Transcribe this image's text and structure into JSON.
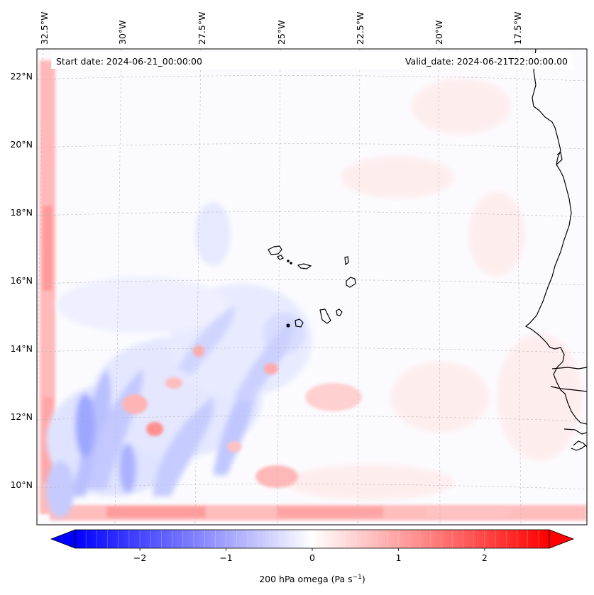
{
  "header": {
    "start_date": "Start date: 2024-06-21_00:00:00",
    "valid_date": "Valid_date: 2024-06-21T22:00:00.00"
  },
  "map": {
    "lon_labels": [
      "32.5°W",
      "30°W",
      "27.5°W",
      "25°W",
      "22.5°W",
      "20°W",
      "17.5°W"
    ],
    "lat_labels": [
      "22°N",
      "20°N",
      "18°N",
      "16°N",
      "14°N",
      "12°N",
      "10°N"
    ],
    "gridlines": true,
    "coastlines": true
  },
  "colorbar": {
    "label_main": "200 hPa omega (Pa s",
    "label_sup": "−1",
    "label_end": ")",
    "ticks": [
      "−2",
      "−1",
      "0",
      "1",
      "2"
    ],
    "min": -2.75,
    "max": 2.75,
    "extend": "both",
    "colormap": "bwr",
    "color_low": "#0000ff",
    "color_mid": "#ffffff",
    "color_high": "#ff0000"
  }
}
